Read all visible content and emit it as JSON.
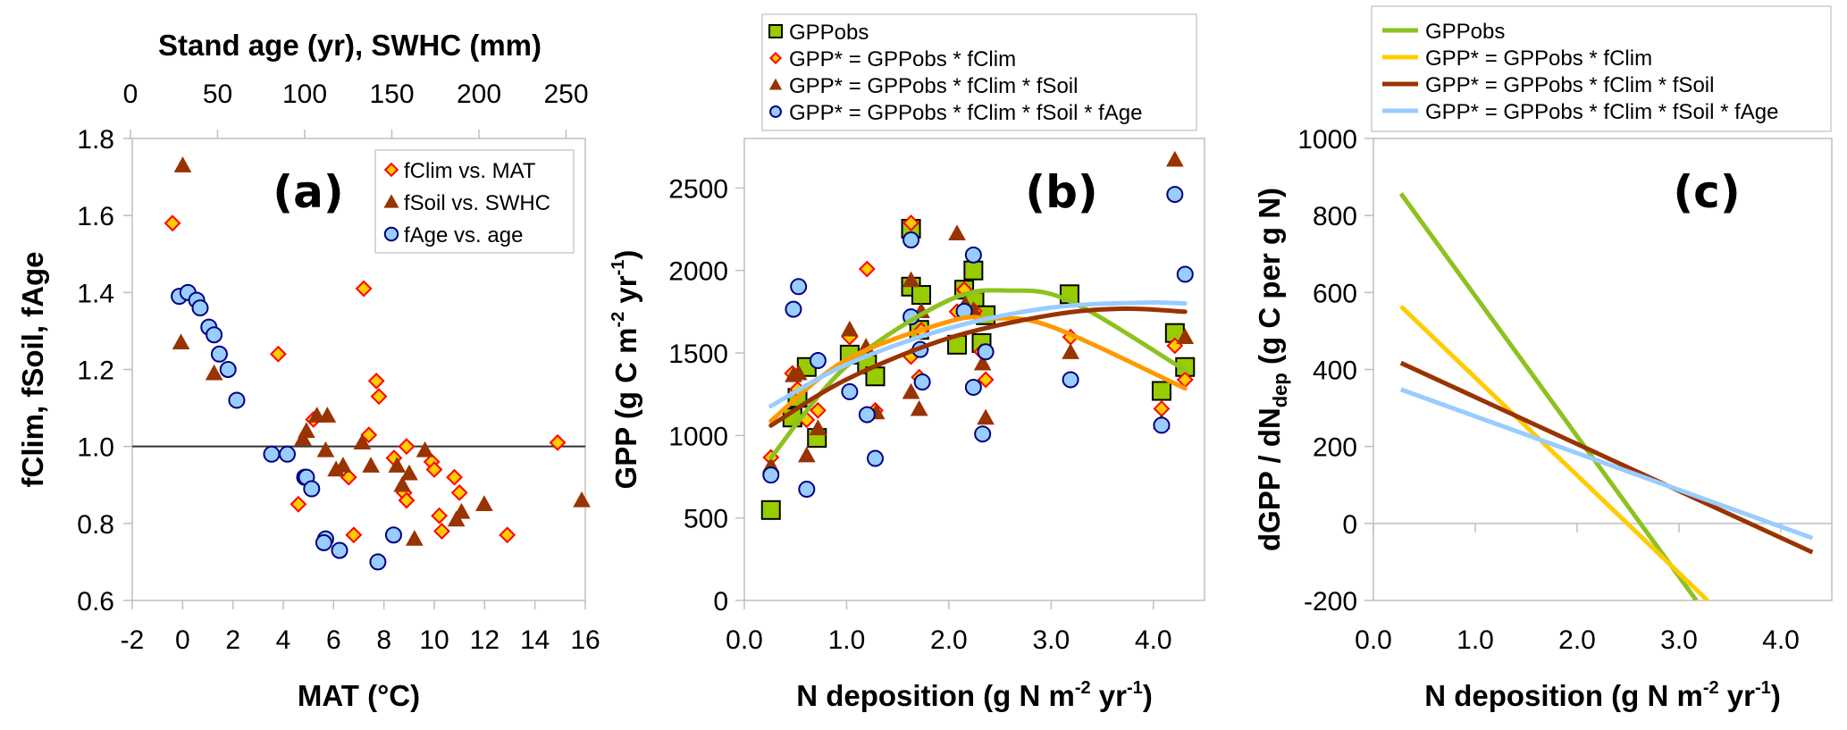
{
  "chart_data": [
    {
      "id": "a",
      "type": "scatter",
      "panel_label": "(a)",
      "title": "",
      "xlabel": "MAT (°C)",
      "x2label": "Stand age (yr), SWHC (mm)",
      "ylabel": "fClim, fSoil, fAge",
      "xlim": [
        -2,
        16
      ],
      "x2lim": [
        0,
        260
      ],
      "ylim": [
        0.6,
        1.8
      ],
      "xticks": [
        "-2",
        "0",
        "2",
        "4",
        "6",
        "8",
        "10",
        "12",
        "14",
        "16"
      ],
      "xtick_values": [
        -2,
        0,
        2,
        4,
        6,
        8,
        10,
        12,
        14,
        16
      ],
      "x2ticks": [
        "0",
        "50",
        "100",
        "150",
        "200",
        "250"
      ],
      "x2tick_values": [
        0,
        50,
        100,
        150,
        200,
        250
      ],
      "yticks": [
        "0.6",
        "0.8",
        "1.0",
        "1.2",
        "1.4",
        "1.6",
        "1.8"
      ],
      "ytick_values": [
        0.6,
        0.8,
        1.0,
        1.2,
        1.4,
        1.6,
        1.8
      ],
      "reference_line": 1.0,
      "grid": false,
      "legend_position": "top-right",
      "series": [
        {
          "name": "fClim vs. MAT",
          "marker": "diamond",
          "axis": "x",
          "fill": "#FFCC00",
          "stroke": "#FF0000",
          "points": [
            [
              -0.4,
              1.58
            ],
            [
              3.8,
              1.24
            ],
            [
              7.2,
              1.41
            ],
            [
              7.7,
              1.17
            ],
            [
              7.8,
              1.13
            ],
            [
              5.2,
              1.07
            ],
            [
              7.4,
              1.03
            ],
            [
              8.9,
              1.0
            ],
            [
              14.9,
              1.01
            ],
            [
              8.4,
              0.97
            ],
            [
              9.9,
              0.96
            ],
            [
              10.0,
              0.94
            ],
            [
              6.6,
              0.92
            ],
            [
              10.8,
              0.92
            ],
            [
              11.0,
              0.88
            ],
            [
              8.8,
              0.88
            ],
            [
              8.9,
              0.86
            ],
            [
              4.6,
              0.85
            ],
            [
              10.2,
              0.82
            ],
            [
              6.8,
              0.77
            ],
            [
              10.3,
              0.78
            ],
            [
              12.9,
              0.77
            ]
          ]
        },
        {
          "name": "fSoil vs. SWHC",
          "marker": "triangle",
          "axis": "x2",
          "fill": "#993300",
          "stroke": "#993300",
          "points": [
            [
              30,
              1.73
            ],
            [
              29,
              1.27
            ],
            [
              48,
              1.19
            ],
            [
              107,
              1.08
            ],
            [
              113,
              1.08
            ],
            [
              101,
              1.04
            ],
            [
              99,
              1.02
            ],
            [
              112,
              0.99
            ],
            [
              133,
              1.01
            ],
            [
              169,
              0.99
            ],
            [
              122,
              0.95
            ],
            [
              118,
              0.94
            ],
            [
              138,
              0.95
            ],
            [
              153,
              0.95
            ],
            [
              160,
              0.93
            ],
            [
              156,
              0.9
            ],
            [
              203,
              0.85
            ],
            [
              190,
              0.83
            ],
            [
              187,
              0.81
            ],
            [
              163,
              0.76
            ],
            [
              259,
              0.86
            ]
          ]
        },
        {
          "name": "fAge vs. age",
          "marker": "circle",
          "axis": "x2",
          "fill": "#99CCFF",
          "stroke": "#000080",
          "points": [
            [
              28,
              1.39
            ],
            [
              33,
              1.4
            ],
            [
              38,
              1.38
            ],
            [
              40,
              1.36
            ],
            [
              45,
              1.31
            ],
            [
              48,
              1.29
            ],
            [
              51,
              1.24
            ],
            [
              56,
              1.2
            ],
            [
              61,
              1.12
            ],
            [
              81,
              0.98
            ],
            [
              90,
              0.98
            ],
            [
              100,
              0.92
            ],
            [
              101,
              0.92
            ],
            [
              104,
              0.89
            ],
            [
              112,
              0.76
            ],
            [
              111,
              0.75
            ],
            [
              120,
              0.73
            ],
            [
              151,
              0.77
            ],
            [
              142,
              0.7
            ]
          ]
        }
      ]
    },
    {
      "id": "b",
      "type": "scatter",
      "panel_label": "(b)",
      "title": "",
      "xlabel": "N deposition (g N m-2 yr-1)",
      "xlabel_parts": [
        "N deposition (g N m",
        "-2",
        " yr",
        "-1",
        ")"
      ],
      "ylabel": "GPP (g C m-2 yr-1)",
      "ylabel_parts": [
        "GPP (g C m",
        "-2",
        " yr",
        "-1",
        ")"
      ],
      "xlim": [
        0,
        4.5
      ],
      "ylim": [
        0,
        2800
      ],
      "xticks": [
        "0.0",
        "1.0",
        "2.0",
        "3.0",
        "4.0"
      ],
      "xtick_values": [
        0,
        1,
        2,
        3,
        4
      ],
      "yticks": [
        "0",
        "500",
        "1000",
        "1500",
        "2000",
        "2500"
      ],
      "ytick_values": [
        0,
        500,
        1000,
        1500,
        2000,
        2500
      ],
      "grid": false,
      "legend_position": "top (outside)",
      "series": [
        {
          "name": "GPPobs",
          "marker": "square",
          "fill": "#99CC00",
          "stroke": "#000000",
          "points": [
            [
              0.26,
              548
            ],
            [
              0.47,
              1109
            ],
            [
              0.52,
              1228
            ],
            [
              0.61,
              1415
            ],
            [
              0.71,
              985
            ],
            [
              1.03,
              1490
            ],
            [
              1.2,
              1431
            ],
            [
              1.28,
              1358
            ],
            [
              1.63,
              2253
            ],
            [
              1.63,
              1902
            ],
            [
              1.73,
              1852
            ],
            [
              1.71,
              1640
            ],
            [
              2.08,
              1550
            ],
            [
              2.15,
              1884
            ],
            [
              2.24,
              2000
            ],
            [
              2.25,
              1813
            ],
            [
              2.36,
              1729
            ],
            [
              2.32,
              1560
            ],
            [
              3.18,
              1856
            ],
            [
              4.08,
              1270
            ],
            [
              4.21,
              1621
            ],
            [
              4.31,
              1415
            ]
          ],
          "fit": {
            "color": "#8DC21F",
            "x": [
              0.26,
              1.0,
              2.0,
              2.6,
              3.2,
              4.31
            ],
            "y": [
              865,
              1420,
              1820,
              1878,
              1810,
              1395
            ]
          }
        },
        {
          "name": "GPP* = GPPobs * fClim",
          "marker": "diamond",
          "fill": "#FFCC00",
          "stroke": "#FF0000",
          "points": [
            [
              0.26,
              867
            ],
            [
              0.47,
              1376
            ],
            [
              0.52,
              1280
            ],
            [
              0.61,
              1095
            ],
            [
              0.72,
              1152
            ],
            [
              1.03,
              1596
            ],
            [
              1.2,
              2009
            ],
            [
              1.28,
              1152
            ],
            [
              1.63,
              2288
            ],
            [
              1.63,
              1478
            ],
            [
              1.71,
              1353
            ],
            [
              1.73,
              1637
            ],
            [
              2.08,
              1751
            ],
            [
              2.15,
              1884
            ],
            [
              2.25,
              1753
            ],
            [
              2.32,
              1507
            ],
            [
              2.36,
              1338
            ],
            [
              3.19,
              1596
            ],
            [
              4.08,
              1162
            ],
            [
              4.21,
              1544
            ],
            [
              4.31,
              1338
            ]
          ],
          "fit": {
            "color": "#FF9900",
            "x": [
              0.26,
              1.0,
              2.0,
              2.4,
              3.0,
              4.31
            ],
            "y": [
              1088,
              1460,
              1690,
              1710,
              1660,
              1285
            ]
          }
        },
        {
          "name": "GPP* = GPPobs * fClim * fSoil",
          "marker": "triangle",
          "fill": "#993300",
          "stroke": "#993300",
          "points": [
            [
              0.26,
              817
            ],
            [
              0.48,
              1365
            ],
            [
              0.53,
              1377
            ],
            [
              0.61,
              879
            ],
            [
              0.72,
              1043
            ],
            [
              1.03,
              1642
            ],
            [
              1.19,
              1537
            ],
            [
              1.29,
              1140
            ],
            [
              1.63,
              1941
            ],
            [
              1.63,
              1263
            ],
            [
              1.71,
              1160
            ],
            [
              1.73,
              1753
            ],
            [
              2.08,
              2224
            ],
            [
              2.16,
              1795
            ],
            [
              2.24,
              1760
            ],
            [
              2.33,
              1436
            ],
            [
              2.36,
              1107
            ],
            [
              3.19,
              1505
            ],
            [
              4.08,
              1080
            ],
            [
              4.21,
              2671
            ],
            [
              4.31,
              1596
            ]
          ],
          "fit": {
            "color": "#993300",
            "x": [
              0.26,
              1.0,
              2.0,
              3.0,
              3.7,
              4.31
            ],
            "y": [
              1060,
              1340,
              1590,
              1730,
              1768,
              1750
            ]
          }
        },
        {
          "name": "GPP* = GPPobs * fClim * fSoil * fAge",
          "marker": "circle",
          "fill": "#99CCFF",
          "stroke": "#000080",
          "points": [
            [
              0.26,
              760
            ],
            [
              0.48,
              1765
            ],
            [
              0.53,
              1902
            ],
            [
              0.61,
              674
            ],
            [
              0.72,
              1454
            ],
            [
              1.03,
              1265
            ],
            [
              1.2,
              1126
            ],
            [
              1.28,
              861
            ],
            [
              1.63,
              2185
            ],
            [
              1.63,
              1719
            ],
            [
              1.72,
              1521
            ],
            [
              1.74,
              1324
            ],
            [
              2.15,
              1753
            ],
            [
              2.24,
              2094
            ],
            [
              2.24,
              1292
            ],
            [
              2.33,
              1009
            ],
            [
              2.36,
              1507
            ],
            [
              3.19,
              1338
            ],
            [
              4.08,
              1062
            ],
            [
              4.21,
              2461
            ],
            [
              4.31,
              1977
            ]
          ],
          "fit": {
            "color": "#99CCFF",
            "x": [
              0.26,
              1.0,
              2.0,
              3.0,
              3.9,
              4.31
            ],
            "y": [
              1178,
              1430,
              1650,
              1775,
              1805,
              1800
            ]
          }
        }
      ]
    },
    {
      "id": "c",
      "type": "line",
      "panel_label": "(c)",
      "title": "",
      "xlabel": "N deposition (g N m-2 yr-1)",
      "xlabel_parts": [
        "N deposition (g N m",
        "-2",
        " yr",
        "-1",
        ")"
      ],
      "ylabel": "dGPP / dNdep (g C per g N)",
      "ylabel_parts": [
        "dGPP / dN",
        "dep",
        " (g C per g N)"
      ],
      "xlim": [
        0,
        4.5
      ],
      "ylim": [
        -200,
        1000
      ],
      "xticks": [
        "0.0",
        "1.0",
        "2.0",
        "3.0",
        "4.0"
      ],
      "xtick_values": [
        0,
        1,
        2,
        3,
        4
      ],
      "yticks": [
        "-200",
        "0",
        "200",
        "400",
        "600",
        "800",
        "1000"
      ],
      "ytick_values": [
        -200,
        0,
        200,
        400,
        600,
        800,
        1000
      ],
      "grid": false,
      "legend_position": "top (outside)",
      "series": [
        {
          "name": "GPPobs",
          "color": "#8DC21F",
          "x": [
            0.27,
            3.17
          ],
          "y": [
            857,
            -200
          ]
        },
        {
          "name": "GPP* = GPPobs * fClim",
          "color": "#FFCC00",
          "x": [
            0.27,
            3.28
          ],
          "y": [
            564,
            -200
          ]
        },
        {
          "name": "GPP* = GPPobs * fClim * fSoil",
          "color": "#993300",
          "x": [
            0.27,
            4.31
          ],
          "y": [
            417,
            -75
          ]
        },
        {
          "name": "GPP* = GPPobs * fClim * fSoil * fAge",
          "color": "#99CCFF",
          "x": [
            0.27,
            4.31
          ],
          "y": [
            348,
            -38
          ]
        }
      ]
    }
  ]
}
